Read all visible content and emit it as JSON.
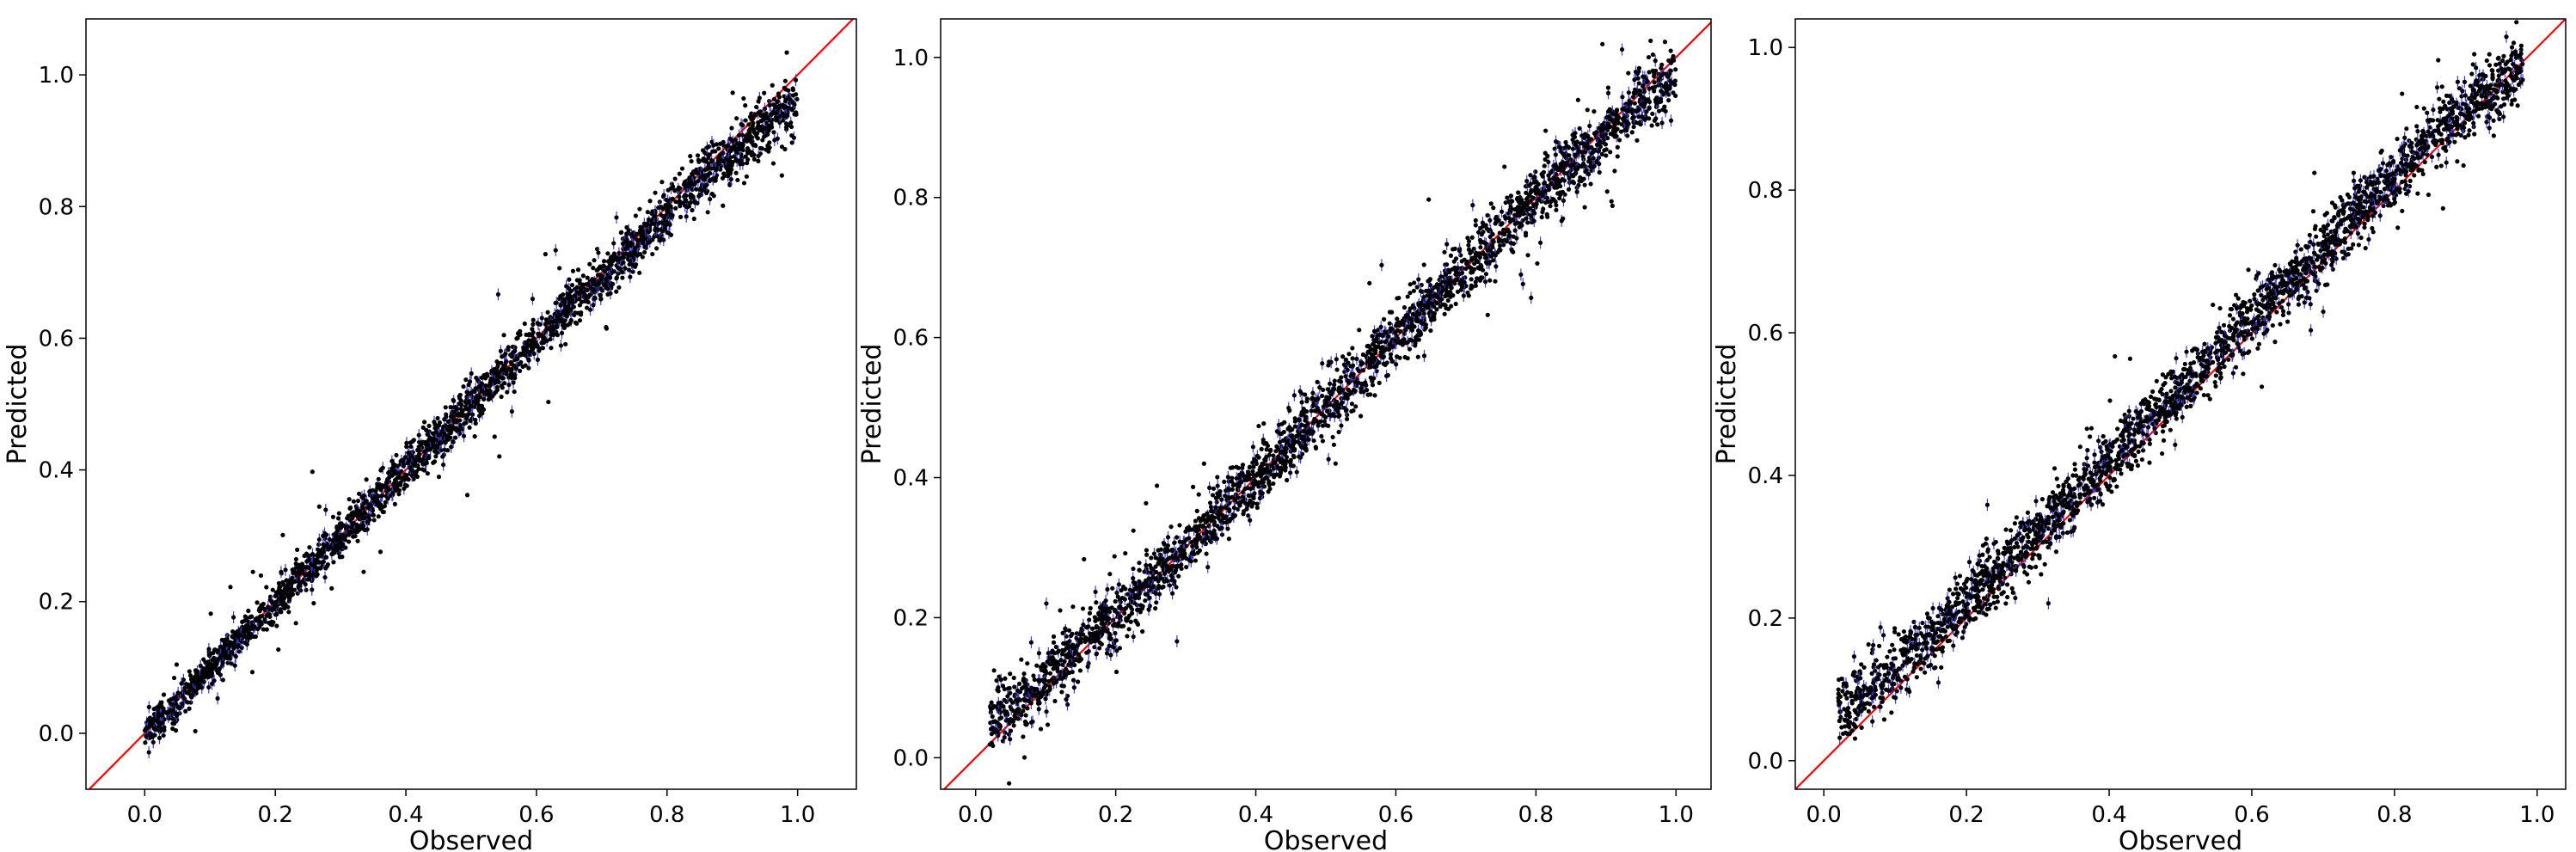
{
  "chart_data": [
    {
      "type": "scatter",
      "title": "",
      "xlabel": "Observed",
      "ylabel": "Predicted",
      "xlim": [
        -0.09,
        1.09
      ],
      "ylim": [
        -0.085,
        1.085
      ],
      "xticks": [
        "0.0",
        "0.2",
        "0.4",
        "0.6",
        "0.8",
        "1.0"
      ],
      "yticks": [
        "0.0",
        "0.2",
        "0.4",
        "0.6",
        "0.8",
        "1.0"
      ],
      "grid": false,
      "reference_line": "y = x",
      "colors": {
        "points": "#000000",
        "error_bars": "#3b3bd6",
        "reference_line": "#ff0000"
      },
      "series": [
        {
          "x": [
            0.0,
            0.02,
            0.05,
            0.08,
            0.1,
            0.12,
            0.15,
            0.18,
            0.2,
            0.22,
            0.25,
            0.28,
            0.3,
            0.33,
            0.35,
            0.38,
            0.4,
            0.42,
            0.45,
            0.48,
            0.5,
            0.52,
            0.55,
            0.58,
            0.6,
            0.62,
            0.65,
            0.68,
            0.7,
            0.72,
            0.75,
            0.78,
            0.8,
            0.82,
            0.85,
            0.88,
            0.9,
            0.92,
            0.95,
            0.97,
            0.99,
            1.0
          ],
          "y": [
            0.0,
            0.02,
            0.04,
            0.08,
            0.1,
            0.12,
            0.15,
            0.18,
            0.2,
            0.22,
            0.25,
            0.28,
            0.3,
            0.33,
            0.35,
            0.38,
            0.4,
            0.42,
            0.45,
            0.48,
            0.5,
            0.52,
            0.55,
            0.58,
            0.6,
            0.62,
            0.65,
            0.67,
            0.69,
            0.71,
            0.74,
            0.77,
            0.79,
            0.81,
            0.84,
            0.86,
            0.88,
            0.9,
            0.92,
            0.94,
            0.95,
            0.96
          ]
        }
      ]
    },
    {
      "type": "scatter",
      "title": "",
      "xlabel": "Observed",
      "ylabel": "Predicted",
      "xlim": [
        -0.05,
        1.05
      ],
      "ylim": [
        -0.045,
        1.055
      ],
      "xticks": [
        "0.0",
        "0.2",
        "0.4",
        "0.6",
        "0.8",
        "1.0"
      ],
      "yticks": [
        "0.0",
        "0.2",
        "0.4",
        "0.6",
        "0.8",
        "1.0"
      ],
      "grid": false,
      "reference_line": "y = x",
      "colors": {
        "points": "#000000",
        "error_bars": "#3b3bd6",
        "reference_line": "#ff0000"
      },
      "series": [
        {
          "x": [
            0.02,
            0.05,
            0.08,
            0.1,
            0.12,
            0.15,
            0.18,
            0.2,
            0.22,
            0.25,
            0.28,
            0.3,
            0.33,
            0.35,
            0.38,
            0.4,
            0.42,
            0.45,
            0.48,
            0.5,
            0.52,
            0.55,
            0.58,
            0.6,
            0.62,
            0.65,
            0.68,
            0.7,
            0.72,
            0.75,
            0.78,
            0.8,
            0.82,
            0.85,
            0.88,
            0.9,
            0.92,
            0.95,
            0.98,
            1.0
          ],
          "y": [
            0.05,
            0.07,
            0.09,
            0.11,
            0.13,
            0.16,
            0.19,
            0.2,
            0.22,
            0.25,
            0.28,
            0.3,
            0.33,
            0.35,
            0.38,
            0.4,
            0.42,
            0.45,
            0.48,
            0.5,
            0.52,
            0.55,
            0.58,
            0.6,
            0.62,
            0.65,
            0.68,
            0.7,
            0.72,
            0.75,
            0.78,
            0.8,
            0.82,
            0.85,
            0.87,
            0.89,
            0.91,
            0.94,
            0.96,
            0.97
          ]
        }
      ]
    },
    {
      "type": "scatter",
      "title": "",
      "xlabel": "Observed",
      "ylabel": "Predicted",
      "xlim": [
        -0.04,
        1.04
      ],
      "ylim": [
        -0.04,
        1.04
      ],
      "xticks": [
        "0.0",
        "0.2",
        "0.4",
        "0.6",
        "0.8",
        "1.0"
      ],
      "yticks": [
        "0.0",
        "0.2",
        "0.4",
        "0.6",
        "0.8",
        "1.0"
      ],
      "grid": false,
      "reference_line": "y = x",
      "colors": {
        "points": "#000000",
        "error_bars": "#3b3bd6",
        "reference_line": "#ff0000"
      },
      "series": [
        {
          "x": [
            0.02,
            0.05,
            0.08,
            0.1,
            0.12,
            0.15,
            0.18,
            0.2,
            0.22,
            0.25,
            0.28,
            0.3,
            0.33,
            0.35,
            0.38,
            0.4,
            0.42,
            0.45,
            0.48,
            0.5,
            0.52,
            0.55,
            0.58,
            0.6,
            0.62,
            0.65,
            0.68,
            0.7,
            0.72,
            0.75,
            0.78,
            0.8,
            0.82,
            0.85,
            0.88,
            0.9,
            0.92,
            0.95,
            0.98
          ],
          "y": [
            0.07,
            0.09,
            0.11,
            0.13,
            0.15,
            0.17,
            0.2,
            0.22,
            0.24,
            0.27,
            0.3,
            0.32,
            0.35,
            0.37,
            0.4,
            0.42,
            0.44,
            0.47,
            0.5,
            0.52,
            0.54,
            0.57,
            0.6,
            0.62,
            0.64,
            0.67,
            0.7,
            0.72,
            0.74,
            0.77,
            0.8,
            0.82,
            0.84,
            0.87,
            0.9,
            0.91,
            0.93,
            0.95,
            0.97
          ]
        }
      ]
    }
  ]
}
